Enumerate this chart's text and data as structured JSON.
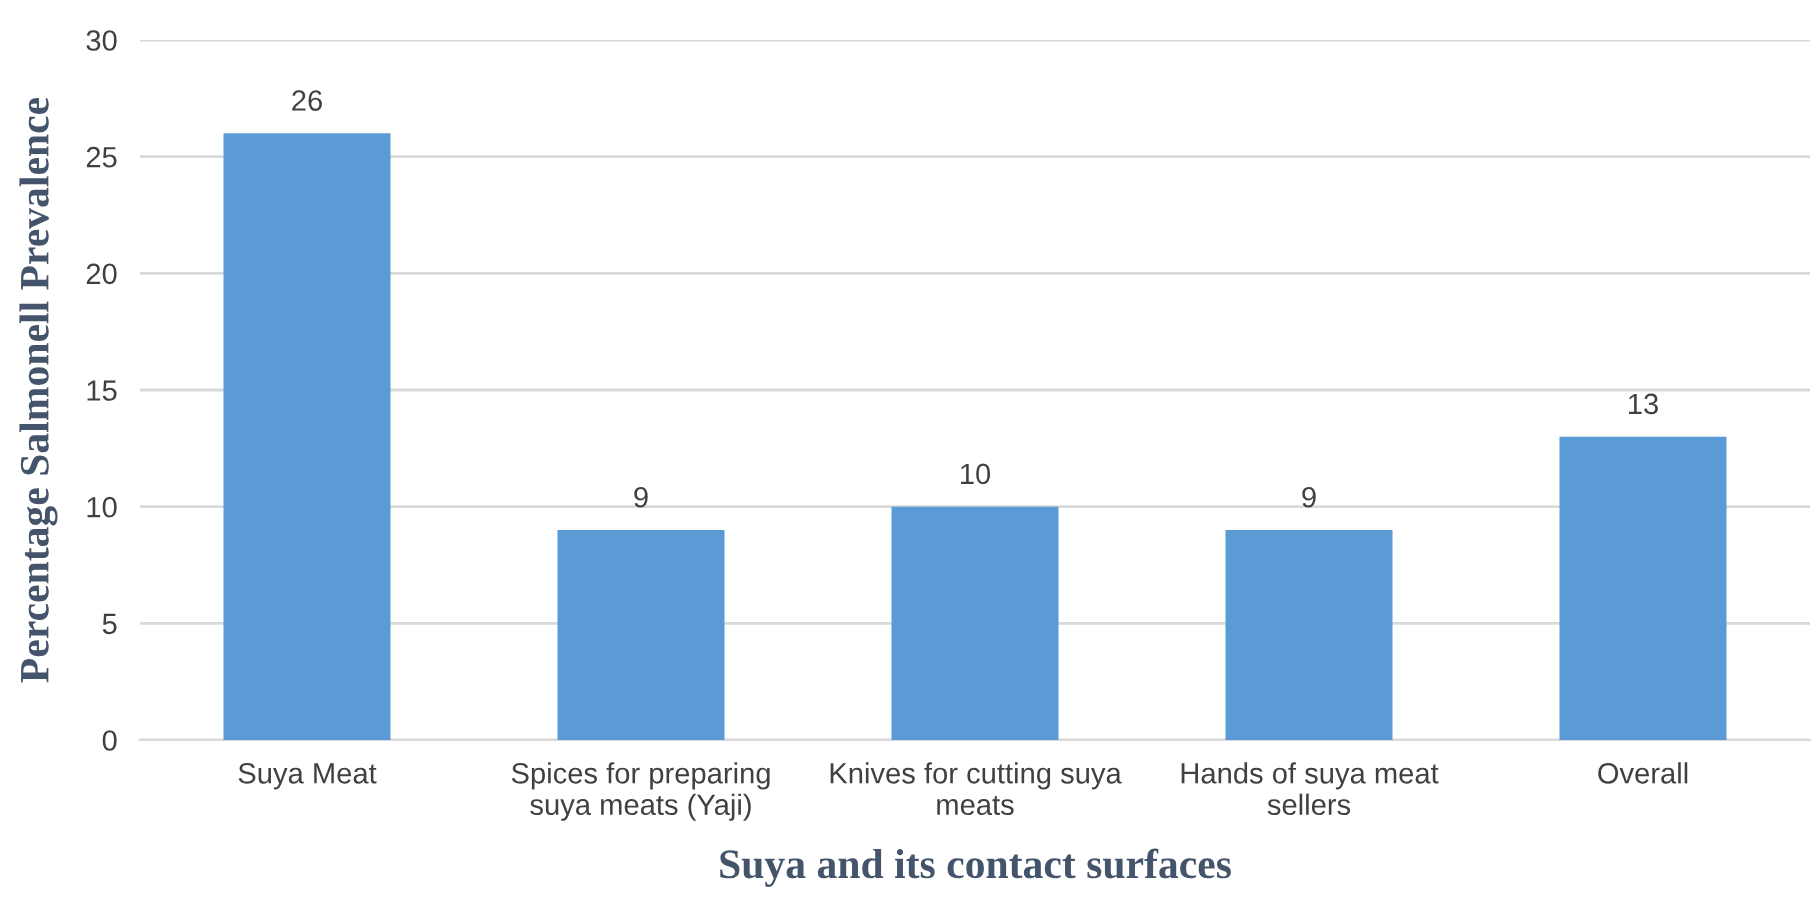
{
  "chart_data": {
    "type": "bar",
    "xlabel": "Suya and its contact surfaces",
    "ylabel": "Percentage Salmonell Prevalence",
    "categories": [
      "Suya Meat",
      "Spices for preparing\nsuya meats (Yaji)",
      "Knives for cutting suya\nmeats",
      "Hands of suya meat\nsellers",
      "Overall"
    ],
    "values": [
      26,
      9,
      10,
      9,
      13
    ],
    "color": "#5b9bd5",
    "ylim": [
      0,
      30
    ],
    "yticks": [
      0,
      5,
      10,
      15,
      20,
      25,
      30
    ],
    "grid": "y",
    "data_labels": true
  }
}
